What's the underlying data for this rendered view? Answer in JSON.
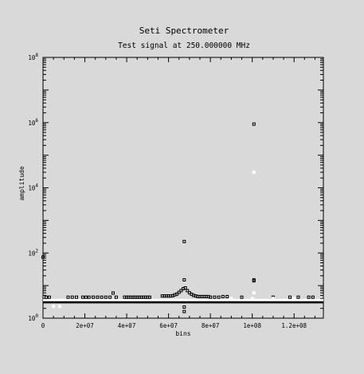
{
  "chart_data": {
    "type": "scatter",
    "title": "Seti Spectrometer",
    "subtitle": "Test signal at 250.000000 MHz",
    "xlabel": "bins",
    "ylabel": "amplitude",
    "xlim": [
      0,
      134000000
    ],
    "ylim": [
      1,
      100000000
    ],
    "yscale": "log",
    "grid": false,
    "x_ticks": [
      {
        "value": 0,
        "label": "0"
      },
      {
        "value": 20000000,
        "label": "2e+07"
      },
      {
        "value": 40000000,
        "label": "4e+07"
      },
      {
        "value": 60000000,
        "label": "6e+07"
      },
      {
        "value": 80000000,
        "label": "8e+07"
      },
      {
        "value": 100000000,
        "label": "1e+08"
      },
      {
        "value": 120000000,
        "label": "1.2e+08"
      }
    ],
    "y_ticks": [
      {
        "value": 1,
        "base": "10",
        "exp": "0"
      },
      {
        "value": 100,
        "base": "10",
        "exp": "2"
      },
      {
        "value": 10000,
        "base": "10",
        "exp": "4"
      },
      {
        "value": 1000000,
        "base": "10",
        "exp": "6"
      },
      {
        "value": 100000000,
        "base": "10",
        "exp": "8"
      }
    ],
    "series": [
      {
        "color": "#000000",
        "baseline": {
          "from": 0,
          "to": 134000000,
          "y": 3.1
        },
        "points": [
          [
            0,
            75
          ],
          [
            1500000,
            4.4
          ],
          [
            3000000,
            4.4
          ],
          [
            12000000,
            4.4
          ],
          [
            14000000,
            4.4
          ],
          [
            16000000,
            4.4
          ],
          [
            19000000,
            4.4
          ],
          [
            20500000,
            4.4
          ],
          [
            22000000,
            4.4
          ],
          [
            24000000,
            4.4
          ],
          [
            26000000,
            4.4
          ],
          [
            28000000,
            4.4
          ],
          [
            30000000,
            4.4
          ],
          [
            32000000,
            4.4
          ],
          [
            33500000,
            5.9
          ],
          [
            35000000,
            4.4
          ],
          [
            39000000,
            4.4
          ],
          [
            40000000,
            4.4
          ],
          [
            41000000,
            4.4
          ],
          [
            42000000,
            4.4
          ],
          [
            43000000,
            4.4
          ],
          [
            44000000,
            4.4
          ],
          [
            45000000,
            4.4
          ],
          [
            46000000,
            4.4
          ],
          [
            47000000,
            4.4
          ],
          [
            48000000,
            4.4
          ],
          [
            49000000,
            4.4
          ],
          [
            50000000,
            4.4
          ],
          [
            51000000,
            4.4
          ],
          [
            57000000,
            4.8
          ],
          [
            58000000,
            4.8
          ],
          [
            59000000,
            4.8
          ],
          [
            60000000,
            4.8
          ],
          [
            61000000,
            4.8
          ],
          [
            62000000,
            4.9
          ],
          [
            63000000,
            5.2
          ],
          [
            64000000,
            5.5
          ],
          [
            65000000,
            6.2
          ],
          [
            66000000,
            7.0
          ],
          [
            67000000,
            8.0
          ],
          [
            67500000,
            225
          ],
          [
            67500000,
            15
          ],
          [
            67500000,
            2.2
          ],
          [
            67500000,
            1.6
          ],
          [
            68000000,
            8.5
          ],
          [
            69000000,
            7.0
          ],
          [
            70000000,
            6.0
          ],
          [
            71000000,
            5.4
          ],
          [
            72000000,
            5.0
          ],
          [
            73000000,
            4.8
          ],
          [
            74000000,
            4.6
          ],
          [
            75000000,
            4.6
          ],
          [
            76000000,
            4.6
          ],
          [
            77000000,
            4.6
          ],
          [
            78000000,
            4.6
          ],
          [
            79000000,
            4.6
          ],
          [
            80000000,
            4.4
          ],
          [
            82000000,
            4.4
          ],
          [
            84000000,
            4.4
          ],
          [
            86000000,
            4.6
          ],
          [
            88000000,
            4.6
          ],
          [
            95000000,
            4.4
          ],
          [
            100800000,
            900000
          ],
          [
            100800000,
            15
          ],
          [
            100800000,
            14
          ],
          [
            110000000,
            4.4
          ],
          [
            118000000,
            4.4
          ],
          [
            122000000,
            4.4
          ],
          [
            127000000,
            4.4
          ],
          [
            129000000,
            4.4
          ]
        ]
      },
      {
        "color": "#ffffff",
        "baseline": {
          "from": 0,
          "to": 134000000,
          "y": 3.6
        },
        "points": [
          [
            5000000,
            2.3
          ],
          [
            8000000,
            2.3
          ],
          [
            100800000,
            30000
          ],
          [
            100800000,
            6.0
          ],
          [
            90000000,
            4.0
          ],
          [
            100000000,
            4.0
          ],
          [
            110000000,
            4.0
          ],
          [
            120000000,
            4.0
          ]
        ]
      }
    ]
  }
}
